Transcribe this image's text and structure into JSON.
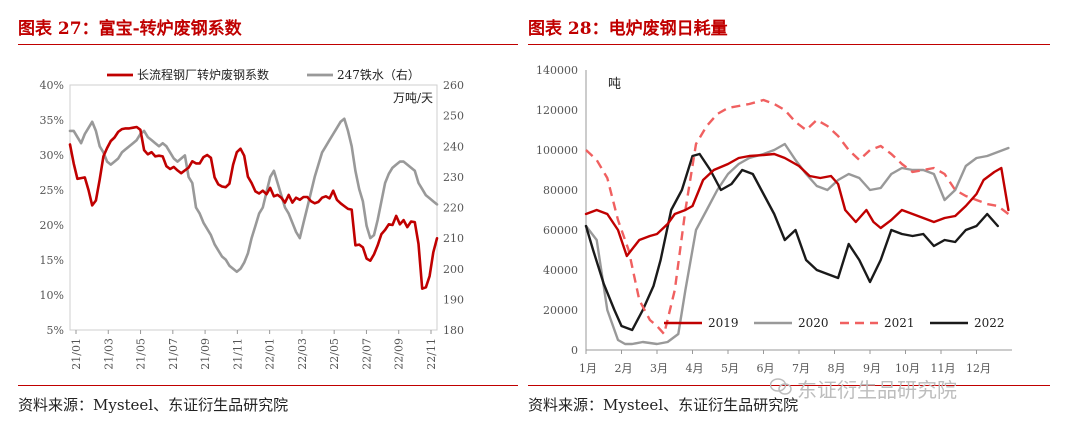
{
  "left": {
    "title": "图表 27：富宝-转炉废钢系数",
    "source": "资料来源：Mysteel、东证衍生品研究院",
    "chart_data": {
      "type": "line",
      "unit_label": "万吨/天",
      "x_ticks": [
        "21/01",
        "21/03",
        "21/05",
        "21/07",
        "21/09",
        "21/11",
        "22/01",
        "22/03",
        "22/05",
        "22/07",
        "22/09",
        "22/11"
      ],
      "y_left": {
        "min": 5,
        "max": 40,
        "ticks": [
          "5%",
          "10%",
          "15%",
          "20%",
          "25%",
          "30%",
          "35%",
          "40%"
        ]
      },
      "y_right": {
        "min": 180,
        "max": 260,
        "ticks": [
          "180",
          "190",
          "200",
          "210",
          "220",
          "230",
          "240",
          "250",
          "260"
        ]
      },
      "n_points": 100,
      "series": [
        {
          "name": "长流程钢厂转炉废钢系数",
          "color": "#c00000",
          "axis": "left",
          "values": [
            31.5,
            28.8,
            26.6,
            26.7,
            26.8,
            25,
            22.8,
            23.5,
            26.5,
            29.8,
            31,
            32,
            32.5,
            33.3,
            33.7,
            33.8,
            33.8,
            33.9,
            34,
            33.6,
            30.7,
            30.1,
            30.4,
            29.8,
            29.9,
            29.8,
            28.4,
            28,
            28.3,
            27.8,
            27.4,
            27.8,
            28.2,
            29.1,
            28.8,
            28.8,
            29.7,
            30,
            29.6,
            26.8,
            25.8,
            25.5,
            25.4,
            25.9,
            28.6,
            30.4,
            30.9,
            29.9,
            26.9,
            26,
            24.8,
            24.5,
            24.9,
            24.4,
            25.3,
            24.1,
            24.3,
            23.9,
            23.2,
            24.3,
            23.2,
            23.9,
            23.6,
            24,
            24,
            23.4,
            23.1,
            23.3,
            23.9,
            24.1,
            23.8,
            24.9,
            23.6,
            23.1,
            22.7,
            22.3,
            22.2,
            17.1,
            17.2,
            16.8,
            15.2,
            14.9,
            15.8,
            17.1,
            18.7,
            19.3,
            20.1,
            20,
            21.3,
            20.1,
            20.7,
            19.7,
            20.5,
            20.4,
            17.3,
            10.9,
            11.1,
            12.7,
            16.1,
            18.1
          ]
        },
        {
          "name": "247铁水（右）",
          "color": "#999999",
          "axis": "right",
          "values": [
            245,
            245,
            243,
            241,
            244,
            246,
            248,
            245,
            240,
            238,
            235,
            234,
            235,
            236,
            238,
            239,
            240,
            241,
            242,
            244,
            245,
            243,
            242,
            241,
            240,
            241,
            240,
            238,
            236,
            235,
            236,
            237,
            230,
            228,
            220,
            218,
            215,
            213,
            211,
            208,
            206,
            204,
            203,
            201,
            200,
            199,
            200,
            202,
            205,
            210,
            214,
            218,
            220,
            225,
            230,
            232,
            228,
            224,
            220,
            218,
            215,
            212,
            210,
            215,
            220,
            225,
            230,
            234,
            238,
            240,
            242,
            244,
            246,
            248,
            249,
            245,
            240,
            232,
            226,
            222,
            214,
            210,
            211,
            216,
            222,
            228,
            231,
            233,
            234,
            235,
            235,
            234,
            233,
            232,
            228,
            226,
            224,
            223,
            222,
            221
          ]
        }
      ]
    }
  },
  "right": {
    "title": "图表 28：电炉废钢日耗量",
    "source": "资料来源：Mysteel、东证衍生品研究院",
    "chart_data": {
      "type": "line",
      "unit_label": "吨",
      "x_ticks": [
        "1月",
        "2月",
        "3月",
        "4月",
        "5月",
        "6月",
        "7月",
        "8月",
        "9月",
        "10月",
        "11月",
        "12月"
      ],
      "x_range": [
        1,
        13
      ],
      "y": {
        "min": 0,
        "max": 140000,
        "ticks": [
          "0",
          "20000",
          "40000",
          "60000",
          "80000",
          "100000",
          "120000",
          "140000"
        ]
      },
      "series": [
        {
          "name": "2019",
          "color": "#c00000",
          "dash": "solid",
          "width": 2.4,
          "x": [
            1,
            1.3,
            1.6,
            1.9,
            2.15,
            2.5,
            2.8,
            3,
            3.3,
            3.5,
            3.8,
            4,
            4.3,
            4.6,
            5,
            5.3,
            5.6,
            6,
            6.3,
            6.6,
            7,
            7.3,
            7.6,
            7.9,
            8.1,
            8.3,
            8.6,
            8.9,
            9.1,
            9.3,
            9.6,
            9.9,
            10.2,
            10.5,
            10.8,
            11.1,
            11.4,
            11.7,
            12,
            12.2,
            12.5,
            12.7,
            12.9
          ],
          "y": [
            68000,
            70000,
            68000,
            60000,
            47000,
            55000,
            57000,
            58000,
            63000,
            68000,
            70000,
            72000,
            85000,
            90000,
            93000,
            96000,
            97000,
            97500,
            98000,
            96000,
            92000,
            87000,
            86000,
            87000,
            83000,
            70000,
            64000,
            70000,
            64000,
            61000,
            65000,
            70000,
            68000,
            66000,
            64000,
            66000,
            67000,
            72000,
            78000,
            85000,
            89000,
            91000,
            70000
          ]
        },
        {
          "name": "2020",
          "color": "#999999",
          "dash": "solid",
          "width": 2.4,
          "x": [
            1,
            1.3,
            1.6,
            1.9,
            2.1,
            2.3,
            2.6,
            3,
            3.3,
            3.6,
            3.8,
            4.1,
            4.4,
            4.7,
            5,
            5.3,
            5.6,
            6,
            6.3,
            6.6,
            6.9,
            7.2,
            7.5,
            7.8,
            8.1,
            8.4,
            8.7,
            9,
            9.3,
            9.6,
            9.9,
            10.2,
            10.5,
            10.8,
            11.1,
            11.4,
            11.7,
            12,
            12.3,
            12.6,
            12.9
          ],
          "y": [
            62000,
            55000,
            20000,
            5000,
            3000,
            3000,
            4000,
            3000,
            4000,
            8000,
            30000,
            60000,
            70000,
            80000,
            88000,
            93000,
            96000,
            98000,
            100000,
            103000,
            95000,
            88000,
            82000,
            80000,
            85000,
            88000,
            86000,
            80000,
            81000,
            88000,
            91000,
            90000,
            90000,
            88000,
            75000,
            80000,
            92000,
            96000,
            97000,
            99000,
            101000
          ]
        },
        {
          "name": "2021",
          "color": "#f06060",
          "dash": "dashed",
          "width": 2.4,
          "x": [
            1,
            1.3,
            1.6,
            1.9,
            2.2,
            2.5,
            2.8,
            3,
            3.2,
            3.5,
            3.8,
            4.1,
            4.4,
            4.7,
            5,
            5.3,
            5.6,
            6,
            6.3,
            6.6,
            6.9,
            7.2,
            7.5,
            7.8,
            8.1,
            8.4,
            8.7,
            9,
            9.3,
            9.6,
            9.9,
            10.2,
            10.5,
            10.8,
            11.1,
            11.4,
            11.7,
            12,
            12.3,
            12.6,
            12.9
          ],
          "y": [
            100000,
            95000,
            86000,
            65000,
            50000,
            25000,
            15000,
            12000,
            8000,
            30000,
            70000,
            103000,
            112000,
            118000,
            121000,
            122000,
            123000,
            125000,
            123000,
            120000,
            114000,
            110000,
            115000,
            112000,
            107000,
            100000,
            95000,
            100000,
            102000,
            98000,
            93000,
            89000,
            90000,
            91000,
            88000,
            80000,
            77000,
            75000,
            73000,
            72000,
            68000
          ]
        },
        {
          "name": "2022",
          "color": "#1a1a1a",
          "dash": "solid",
          "width": 2.4,
          "x": [
            1,
            1.2,
            1.5,
            1.8,
            2,
            2.3,
            2.6,
            2.9,
            3.1,
            3.4,
            3.7,
            4,
            4.2,
            4.5,
            4.8,
            5.1,
            5.4,
            5.7,
            6,
            6.3,
            6.6,
            6.9,
            7.2,
            7.5,
            7.8,
            8.1,
            8.4,
            8.7,
            9,
            9.3,
            9.6,
            9.9,
            10.2,
            10.5,
            10.8,
            11.1,
            11.4,
            11.7,
            12,
            12.3,
            12.6
          ],
          "y": [
            62000,
            50000,
            33000,
            20000,
            12000,
            10000,
            20000,
            32000,
            45000,
            70000,
            80000,
            97000,
            98000,
            90000,
            80000,
            83000,
            90000,
            88000,
            78000,
            68000,
            55000,
            60000,
            45000,
            40000,
            38000,
            36000,
            53000,
            45000,
            34000,
            45000,
            60000,
            58000,
            57000,
            58000,
            52000,
            55000,
            54000,
            60000,
            62000,
            68000,
            62000
          ]
        }
      ]
    },
    "watermark": "东证衍生品研究院"
  }
}
